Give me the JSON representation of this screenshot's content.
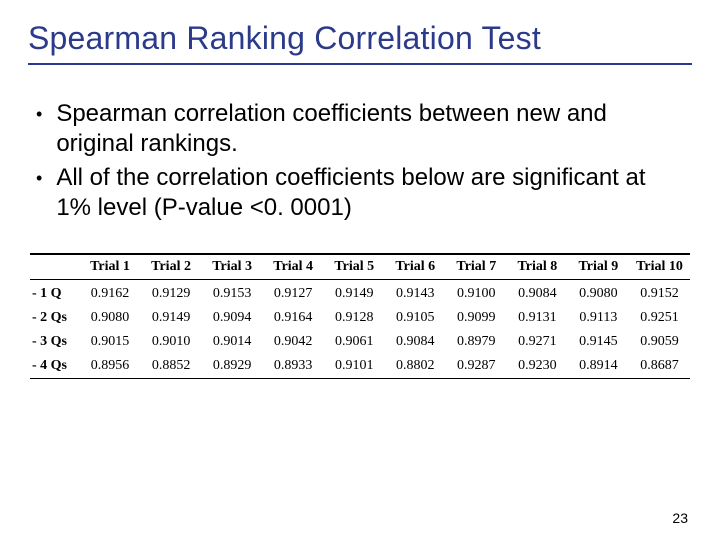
{
  "title": "Spearman Ranking Correlation Test",
  "bullets": [
    "Spearman correlation coefficients between new and original rankings.",
    "All of the correlation coefficients below are significant at 1% level (P-value <0. 0001)"
  ],
  "table": {
    "columns": [
      "Trial 1",
      "Trial 2",
      "Trial 3",
      "Trial 4",
      "Trial 5",
      "Trial 6",
      "Trial 7",
      "Trial 8",
      "Trial 9",
      "Trial 10"
    ],
    "row_labels": [
      "- 1 Q",
      "- 2 Qs",
      "- 3 Qs",
      "- 4 Qs"
    ],
    "rows": [
      [
        "0.9162",
        "0.9129",
        "0.9153",
        "0.9127",
        "0.9149",
        "0.9143",
        "0.9100",
        "0.9084",
        "0.9080",
        "0.9152"
      ],
      [
        "0.9080",
        "0.9149",
        "0.9094",
        "0.9164",
        "0.9128",
        "0.9105",
        "0.9099",
        "0.9131",
        "0.9113",
        "0.9251"
      ],
      [
        "0.9015",
        "0.9010",
        "0.9014",
        "0.9042",
        "0.9061",
        "0.9084",
        "0.8979",
        "0.9271",
        "0.9145",
        "0.9059"
      ],
      [
        "0.8956",
        "0.8852",
        "0.8929",
        "0.8933",
        "0.9101",
        "0.8802",
        "0.9287",
        "0.9230",
        "0.8914",
        "0.8687"
      ]
    ],
    "header_font_size": 14,
    "cell_font_size": 14,
    "font_family": "Times New Roman",
    "title_color": "#2b3a8a",
    "text_color": "#000000",
    "background_color": "#ffffff",
    "rule_color": "#000000"
  },
  "page_number": "23"
}
